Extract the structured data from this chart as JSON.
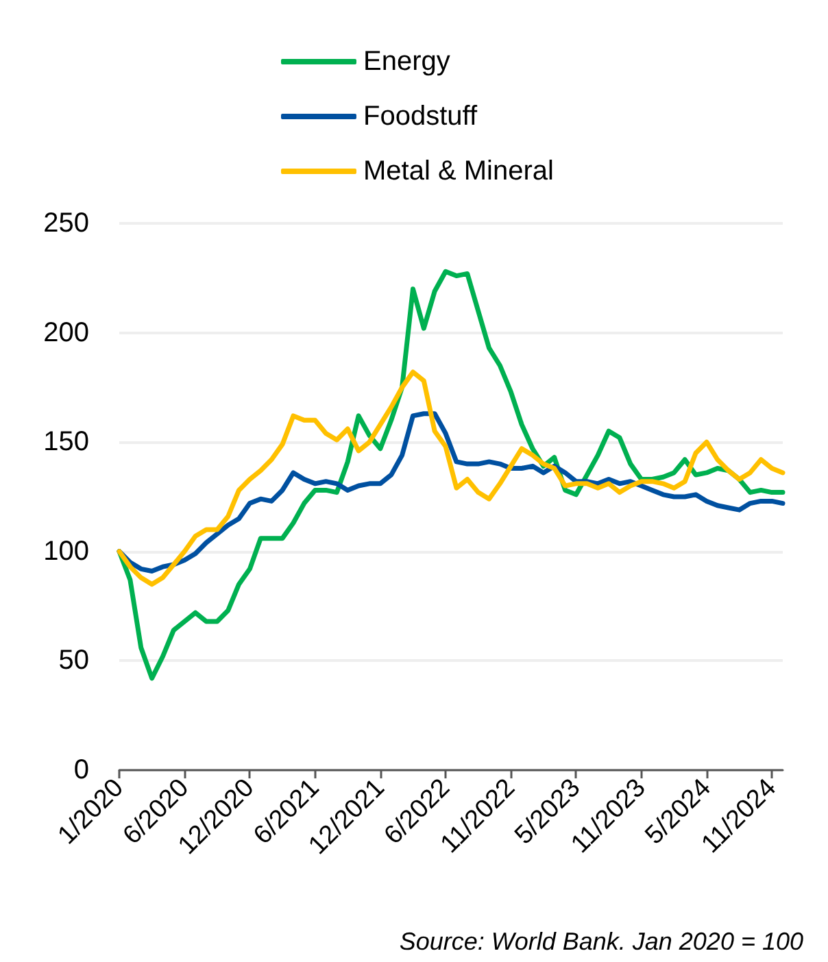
{
  "chart_data": {
    "type": "line",
    "categories": [
      "1/2020",
      null,
      null,
      null,
      null,
      null,
      "6/2020",
      null,
      null,
      null,
      null,
      null,
      "12/2020",
      null,
      null,
      null,
      null,
      null,
      "6/2021",
      null,
      null,
      null,
      null,
      null,
      "12/2021",
      null,
      null,
      null,
      null,
      null,
      "6/2022",
      null,
      null,
      null,
      null,
      null,
      "11/2022",
      null,
      null,
      null,
      null,
      null,
      "5/2023",
      null,
      null,
      null,
      null,
      null,
      "11/2023",
      null,
      null,
      null,
      null,
      null,
      "5/2024",
      null,
      null,
      null,
      null,
      null,
      "11/2024",
      null
    ],
    "series": [
      {
        "name": "Energy",
        "color": "#00b050",
        "values": [
          100,
          87,
          56,
          42,
          52,
          64,
          68,
          72,
          68,
          68,
          73,
          85,
          92,
          106,
          106,
          106,
          113,
          122,
          128,
          128,
          127,
          141,
          162,
          153,
          147,
          160,
          175,
          220,
          202,
          219,
          228,
          226,
          227,
          210,
          193,
          185,
          173,
          158,
          147,
          139,
          143,
          128,
          126,
          135,
          144,
          155,
          152,
          140,
          133,
          133,
          134,
          136,
          142,
          135,
          136,
          138,
          137,
          133,
          127,
          128,
          127,
          127
        ]
      },
      {
        "name": "Foodstuff",
        "color": "#0050a0",
        "values": [
          100,
          95,
          92,
          91,
          93,
          94,
          96,
          99,
          104,
          108,
          112,
          115,
          122,
          124,
          123,
          128,
          136,
          133,
          131,
          132,
          131,
          128,
          130,
          131,
          131,
          135,
          144,
          162,
          163,
          163,
          154,
          141,
          140,
          140,
          141,
          140,
          138,
          138,
          139,
          136,
          139,
          136,
          132,
          132,
          131,
          133,
          131,
          132,
          130,
          128,
          126,
          125,
          125,
          126,
          123,
          121,
          120,
          119,
          122,
          123,
          123,
          122
        ]
      },
      {
        "name": "Metal & Mineral",
        "color": "#ffc000",
        "values": [
          100,
          93,
          88,
          85,
          88,
          94,
          100,
          107,
          110,
          110,
          116,
          128,
          133,
          137,
          142,
          149,
          162,
          160,
          160,
          154,
          151,
          156,
          146,
          150,
          158,
          166,
          175,
          182,
          178,
          155,
          148,
          129,
          133,
          127,
          124,
          131,
          139,
          147,
          144,
          140,
          138,
          130,
          131,
          131,
          129,
          131,
          127,
          130,
          132,
          132,
          131,
          129,
          132,
          145,
          150,
          142,
          137,
          133,
          136,
          142,
          138,
          136
        ]
      }
    ],
    "ylim": [
      0,
      250
    ],
    "yticks": [
      0,
      50,
      100,
      150,
      200,
      250
    ],
    "grid": "y",
    "legend": "top",
    "marker": "none",
    "line_style": "solid",
    "annotations": [
      "Source: World Bank. Jan 2020 = 100"
    ]
  }
}
